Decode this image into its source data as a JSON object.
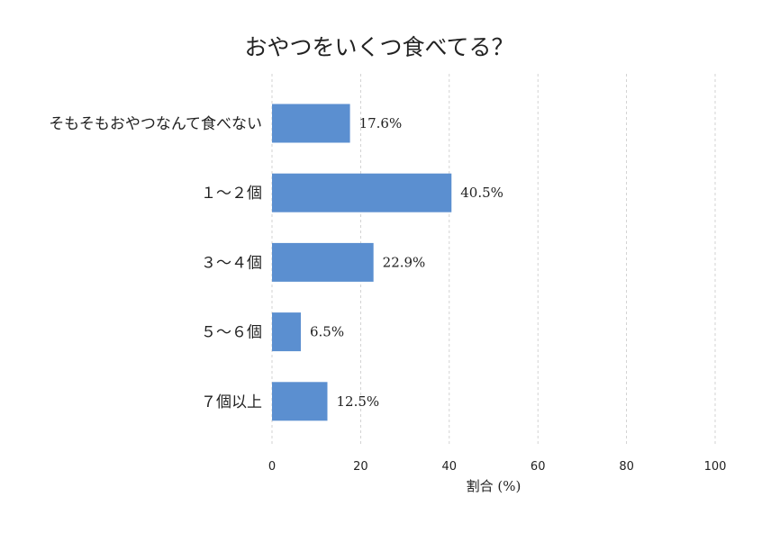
{
  "chart_data": {
    "type": "bar",
    "orientation": "horizontal",
    "title": "おやつをいくつ食べてる？",
    "xlabel": "割合 (%)",
    "ylabel": "",
    "xlim": [
      0,
      100
    ],
    "xticks": [
      0,
      20,
      40,
      60,
      80,
      100
    ],
    "grid": true,
    "categories": [
      "そもそもおやつなんて食べない",
      "１～２個",
      "３～４個",
      "５～６個",
      "７個以上"
    ],
    "values": [
      17.6,
      40.5,
      22.9,
      6.5,
      12.5
    ],
    "value_labels": [
      "17.6%",
      "40.5%",
      "22.9%",
      "6.5%",
      "12.5%"
    ],
    "bar_color": "#5b8fd0"
  }
}
